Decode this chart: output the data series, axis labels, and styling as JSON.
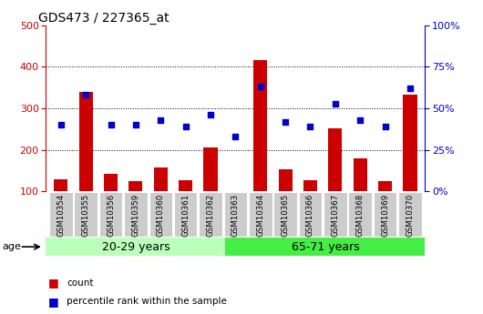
{
  "title": "GDS473 / 227365_at",
  "samples": [
    "GSM10354",
    "GSM10355",
    "GSM10356",
    "GSM10359",
    "GSM10360",
    "GSM10361",
    "GSM10362",
    "GSM10363",
    "GSM10364",
    "GSM10365",
    "GSM10366",
    "GSM10367",
    "GSM10368",
    "GSM10369",
    "GSM10370"
  ],
  "counts": [
    130,
    340,
    143,
    125,
    158,
    127,
    205,
    100,
    415,
    153,
    127,
    253,
    180,
    125,
    333
  ],
  "percentile_ranks": [
    40,
    58,
    40,
    40,
    43,
    39,
    46,
    33,
    63,
    42,
    39,
    53,
    43,
    39,
    62
  ],
  "group1_label": "20-29 years",
  "group2_label": "65-71 years",
  "group1_count": 7,
  "group2_count": 8,
  "ylim_left": [
    100,
    500
  ],
  "ylim_right": [
    0,
    100
  ],
  "yticks_left": [
    100,
    200,
    300,
    400,
    500
  ],
  "yticks_right": [
    0,
    25,
    50,
    75,
    100
  ],
  "bar_color": "#cc0000",
  "scatter_color": "#0000cc",
  "group1_color": "#bbffbb",
  "group2_color": "#44ee44",
  "xticklabel_bg": "#cccccc",
  "legend_count_label": "count",
  "legend_pct_label": "percentile rank within the sample",
  "age_label": "age",
  "left_ytick_color": "#cc0000",
  "right_ytick_color": "#0000cc"
}
